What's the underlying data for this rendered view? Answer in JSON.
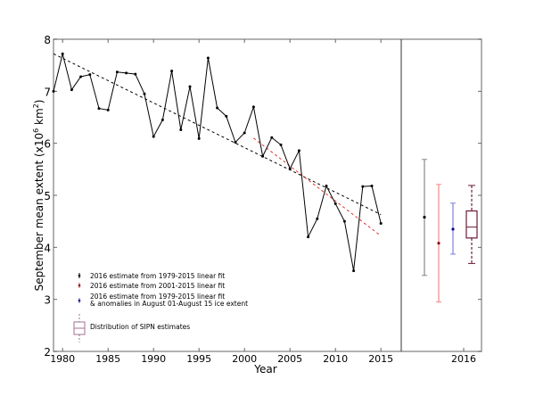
{
  "chart_data": {
    "type": "line",
    "xlabel": "Year",
    "ylabel": "September mean extent (x10^6 km^2)",
    "ylabel_parts": {
      "main": "September mean extent (x10",
      "exp1": "6",
      "mid": " km",
      "exp2": "2",
      "end": ")"
    },
    "ylim": [
      2,
      8
    ],
    "xlim": [
      1979,
      2015
    ],
    "x_ticks": [
      "1980",
      "1985",
      "1990",
      "1995",
      "2000",
      "2005",
      "2010",
      "2015"
    ],
    "y_ticks": [
      "2",
      "3",
      "4",
      "5",
      "6",
      "7",
      "8"
    ],
    "grid": false,
    "legend_position": "lower-left",
    "observed": {
      "years": [
        1979,
        1980,
        1981,
        1982,
        1983,
        1984,
        1985,
        1986,
        1987,
        1988,
        1989,
        1990,
        1991,
        1992,
        1993,
        1994,
        1995,
        1996,
        1997,
        1998,
        1999,
        2000,
        2001,
        2002,
        2003,
        2004,
        2005,
        2006,
        2007,
        2008,
        2009,
        2010,
        2011,
        2012,
        2013,
        2014,
        2015
      ],
      "values": [
        7.0,
        7.72,
        7.03,
        7.28,
        7.32,
        6.67,
        6.64,
        7.37,
        7.35,
        7.33,
        6.95,
        6.13,
        6.45,
        7.39,
        6.26,
        7.09,
        6.09,
        7.64,
        6.68,
        6.52,
        6.02,
        6.2,
        6.7,
        5.75,
        6.11,
        5.97,
        5.51,
        5.86,
        4.2,
        4.55,
        5.18,
        4.84,
        4.5,
        3.55,
        5.17,
        5.18,
        4.46
      ],
      "color": "#000000"
    },
    "fits": [
      {
        "label": "1979-2015 linear fit",
        "x": [
          1979,
          2015
        ],
        "y": [
          7.72,
          4.63
        ],
        "color": "#000000"
      },
      {
        "label": "2001-2015 linear fit",
        "x": [
          2001,
          2015
        ],
        "y": [
          6.1,
          4.22
        ],
        "color": "#e0302a"
      }
    ],
    "panel_2016": {
      "tick_label": "2016",
      "estimates": [
        {
          "name": "2016 estimate from 1979-2015 linear fit",
          "value": 4.58,
          "low": 3.46,
          "high": 5.69,
          "color": "#888888",
          "marker": "#000000"
        },
        {
          "name": "2016 estimate from 2001-2015 linear fit",
          "value": 4.08,
          "low": 2.95,
          "high": 5.21,
          "color": "#f08a8a",
          "marker": "#8b0000"
        },
        {
          "name": "2016 estimate from 1979-2015 linear fit & anomalies in August 01-August 15 ice extent",
          "value": 4.35,
          "low": 3.87,
          "high": 4.85,
          "color": "#8080e0",
          "marker": "#00008b"
        }
      ],
      "sipn_box": {
        "name": "Distribution of SIPN estimates",
        "q1": 4.18,
        "median": 4.39,
        "q3": 4.7,
        "min": 3.69,
        "max": 5.19,
        "color": "#6b1a3a"
      }
    },
    "legend": [
      {
        "line1": "2016 estimate from 1979-2015 linear fit"
      },
      {
        "line1": "2016 estimate from 2001-2015 linear fit"
      },
      {
        "line1": "2016 estimate from 1979-2015 linear fit",
        "line2": "& anomalies in August 01-August 15 ice extent"
      },
      {
        "line1": "Distribution of SIPN estimates"
      }
    ]
  }
}
